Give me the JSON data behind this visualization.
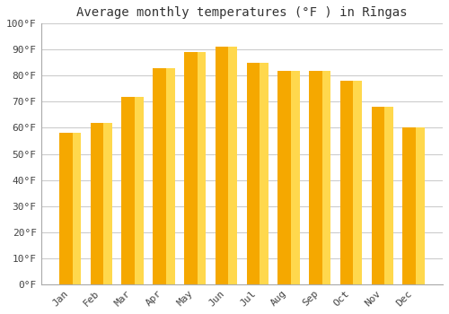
{
  "title": "Average monthly temperatures (°F ) in Rīngas",
  "months": [
    "Jan",
    "Feb",
    "Mar",
    "Apr",
    "May",
    "Jun",
    "Jul",
    "Aug",
    "Sep",
    "Oct",
    "Nov",
    "Dec"
  ],
  "values": [
    58,
    62,
    72,
    83,
    89,
    91,
    85,
    82,
    82,
    78,
    68,
    60
  ],
  "bar_color_left": "#F5A800",
  "bar_color_right": "#FFD84D",
  "background_color": "#FFFFFF",
  "grid_color": "#CCCCCC",
  "yticks": [
    0,
    10,
    20,
    30,
    40,
    50,
    60,
    70,
    80,
    90,
    100
  ],
  "ylim": [
    0,
    100
  ],
  "title_fontsize": 10,
  "tick_fontsize": 8,
  "font_family": "monospace"
}
